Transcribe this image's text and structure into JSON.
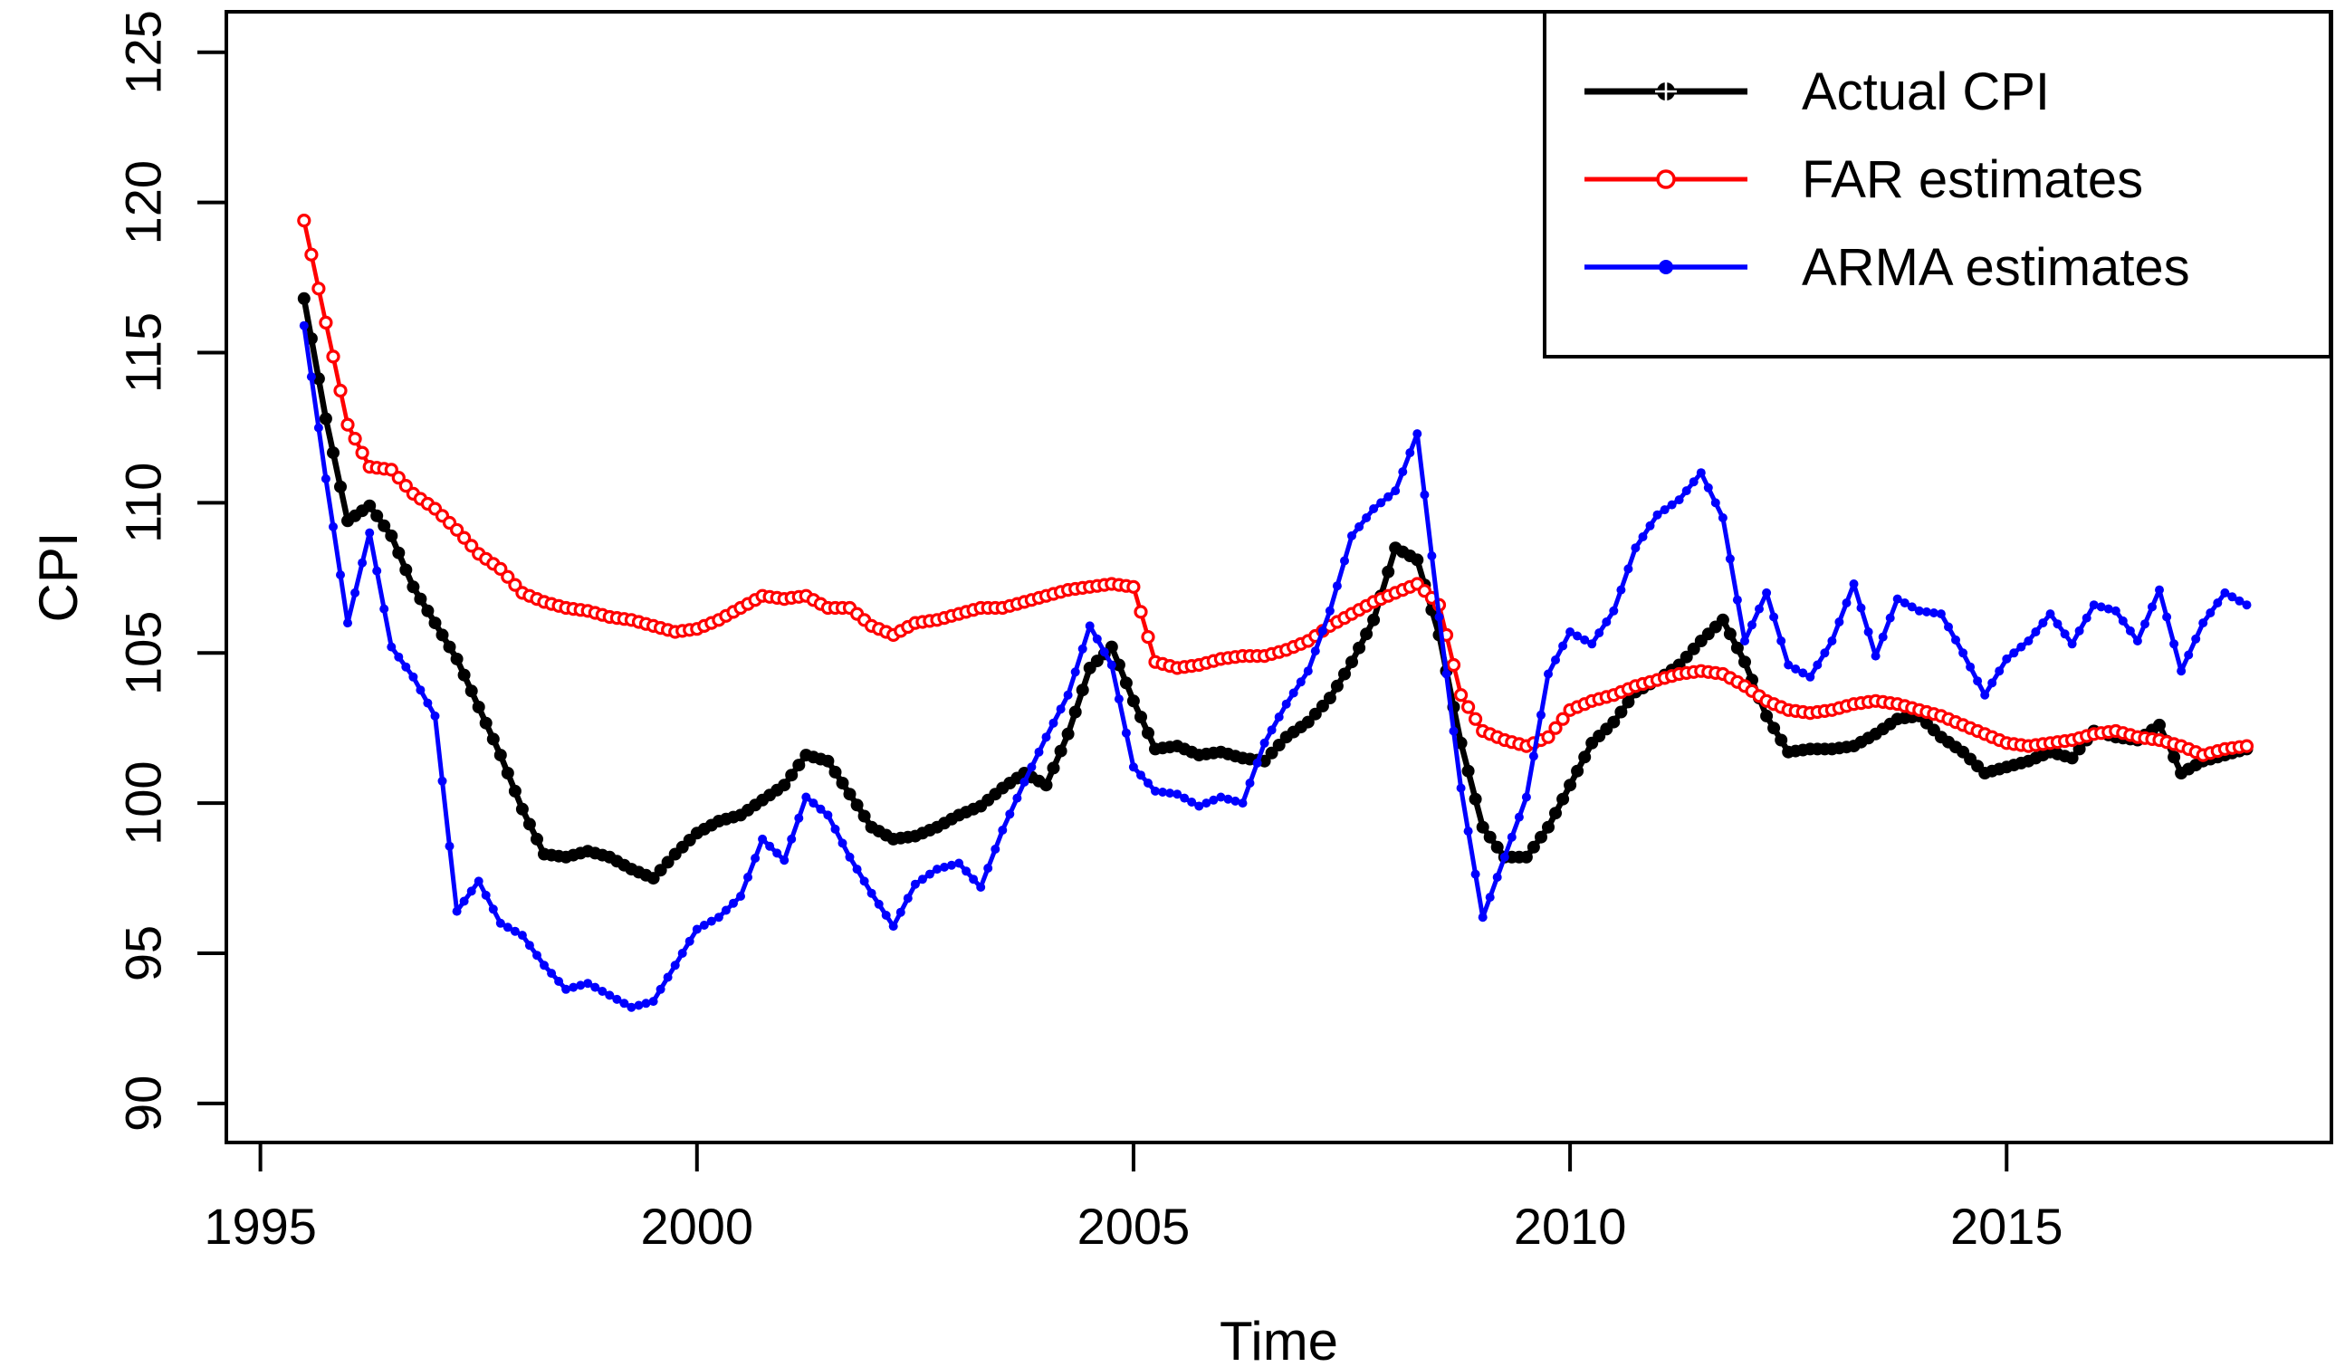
{
  "chart_data": {
    "type": "line",
    "title": "",
    "xlabel": "Time",
    "ylabel": "CPI",
    "x_ticks": [
      1995,
      2000,
      2005,
      2010,
      2015
    ],
    "y_ticks": [
      90,
      95,
      100,
      105,
      110,
      115,
      120,
      125
    ],
    "xlim": [
      1994.61,
      2018.72
    ],
    "ylim": [
      88.7,
      126.35
    ],
    "grid": false,
    "legend_position": "topright",
    "x_start": 1995.5,
    "x_step": 0.25,
    "series": [
      {
        "id": "actual-cpi",
        "name": "Actual CPI",
        "color": "#000000",
        "marker": "filled-circle-cross",
        "values": [
          116.8,
          112.8,
          109.4,
          109.9,
          108.9,
          107.2,
          106.0,
          104.8,
          103.2,
          101.6,
          99.8,
          98.3,
          98.2,
          98.4,
          98.2,
          97.8,
          97.5,
          98.3,
          99.0,
          99.4,
          99.6,
          100.1,
          100.6,
          101.6,
          101.4,
          100.3,
          99.2,
          98.8,
          98.9,
          99.2,
          99.6,
          99.9,
          100.5,
          101.0,
          100.6,
          102.3,
          104.5,
          105.2,
          103.4,
          101.8,
          101.9,
          101.6,
          101.7,
          101.5,
          101.4,
          102.2,
          102.7,
          103.5,
          104.7,
          106.1,
          108.5,
          108.1,
          105.6,
          102.0,
          99.2,
          98.2,
          98.2,
          99.2,
          100.6,
          102.0,
          102.7,
          103.7,
          104.1,
          104.6,
          105.4,
          106.1,
          104.7,
          102.9,
          101.7,
          101.8,
          101.8,
          101.9,
          102.3,
          102.8,
          102.9,
          102.2,
          101.7,
          101.0,
          101.2,
          101.4,
          101.7,
          101.5,
          102.4,
          102.2,
          102.1,
          102.6,
          101.0,
          101.4,
          101.6,
          101.8
        ]
      },
      {
        "id": "far-estimates",
        "name": "FAR estimates",
        "color": "#FF0000",
        "marker": "open-circle",
        "values": [
          119.4,
          116.0,
          112.6,
          111.2,
          111.1,
          110.3,
          109.8,
          109.1,
          108.3,
          107.8,
          107.0,
          106.7,
          106.5,
          106.4,
          106.2,
          106.1,
          105.9,
          105.7,
          105.8,
          106.1,
          106.5,
          106.9,
          106.8,
          106.9,
          106.5,
          106.5,
          105.9,
          105.6,
          106.0,
          106.1,
          106.3,
          106.5,
          106.5,
          106.7,
          106.9,
          107.1,
          107.2,
          107.3,
          107.2,
          104.7,
          104.5,
          104.6,
          104.8,
          104.9,
          104.9,
          105.1,
          105.4,
          105.9,
          106.3,
          106.7,
          107.0,
          107.3,
          106.6,
          103.6,
          102.4,
          102.1,
          101.9,
          102.2,
          103.1,
          103.4,
          103.6,
          103.9,
          104.1,
          104.3,
          104.4,
          104.3,
          103.9,
          103.4,
          103.1,
          103.0,
          103.1,
          103.3,
          103.4,
          103.3,
          103.1,
          102.9,
          102.6,
          102.3,
          102.0,
          101.9,
          102.0,
          102.1,
          102.3,
          102.4,
          102.2,
          102.1,
          101.9,
          101.6,
          101.8,
          101.9
        ]
      },
      {
        "id": "arma-estimates",
        "name": "ARMA estimates",
        "color": "#0000FF",
        "marker": "filled-circle",
        "values": [
          115.9,
          110.8,
          106.0,
          109.0,
          105.2,
          104.2,
          102.9,
          96.4,
          97.4,
          96.0,
          95.6,
          94.6,
          93.8,
          94.0,
          93.6,
          93.2,
          93.4,
          94.6,
          95.8,
          96.2,
          96.9,
          98.8,
          98.1,
          100.2,
          99.6,
          98.2,
          97.0,
          95.9,
          97.3,
          97.8,
          98.0,
          97.2,
          99.1,
          100.7,
          102.2,
          103.6,
          105.9,
          104.6,
          101.2,
          100.4,
          100.3,
          99.9,
          100.2,
          100.0,
          102.0,
          103.3,
          104.4,
          106.4,
          108.9,
          109.8,
          110.4,
          112.3,
          106.2,
          100.5,
          96.2,
          98.2,
          100.2,
          104.3,
          105.7,
          105.3,
          106.4,
          108.5,
          109.6,
          110.1,
          111.0,
          109.5,
          105.4,
          107.0,
          104.6,
          104.2,
          105.4,
          107.3,
          104.9,
          106.8,
          106.4,
          106.3,
          105.0,
          103.6,
          104.8,
          105.4,
          106.3,
          105.3,
          106.6,
          106.4,
          105.4,
          107.1,
          104.4,
          106.0,
          107.0,
          106.6
        ]
      }
    ]
  },
  "legend": {
    "items": [
      {
        "label": "Actual CPI",
        "marker": "filled-circle-cross",
        "color": "#000000"
      },
      {
        "label": "FAR estimates",
        "marker": "open-circle",
        "color": "#FF0000"
      },
      {
        "label": "ARMA estimates",
        "marker": "filled-circle",
        "color": "#0000FF"
      }
    ]
  },
  "colors": {
    "background": "#FFFFFF",
    "axis": "#000000",
    "actual": "#000000",
    "far": "#FF0000",
    "arma": "#0000FF"
  }
}
